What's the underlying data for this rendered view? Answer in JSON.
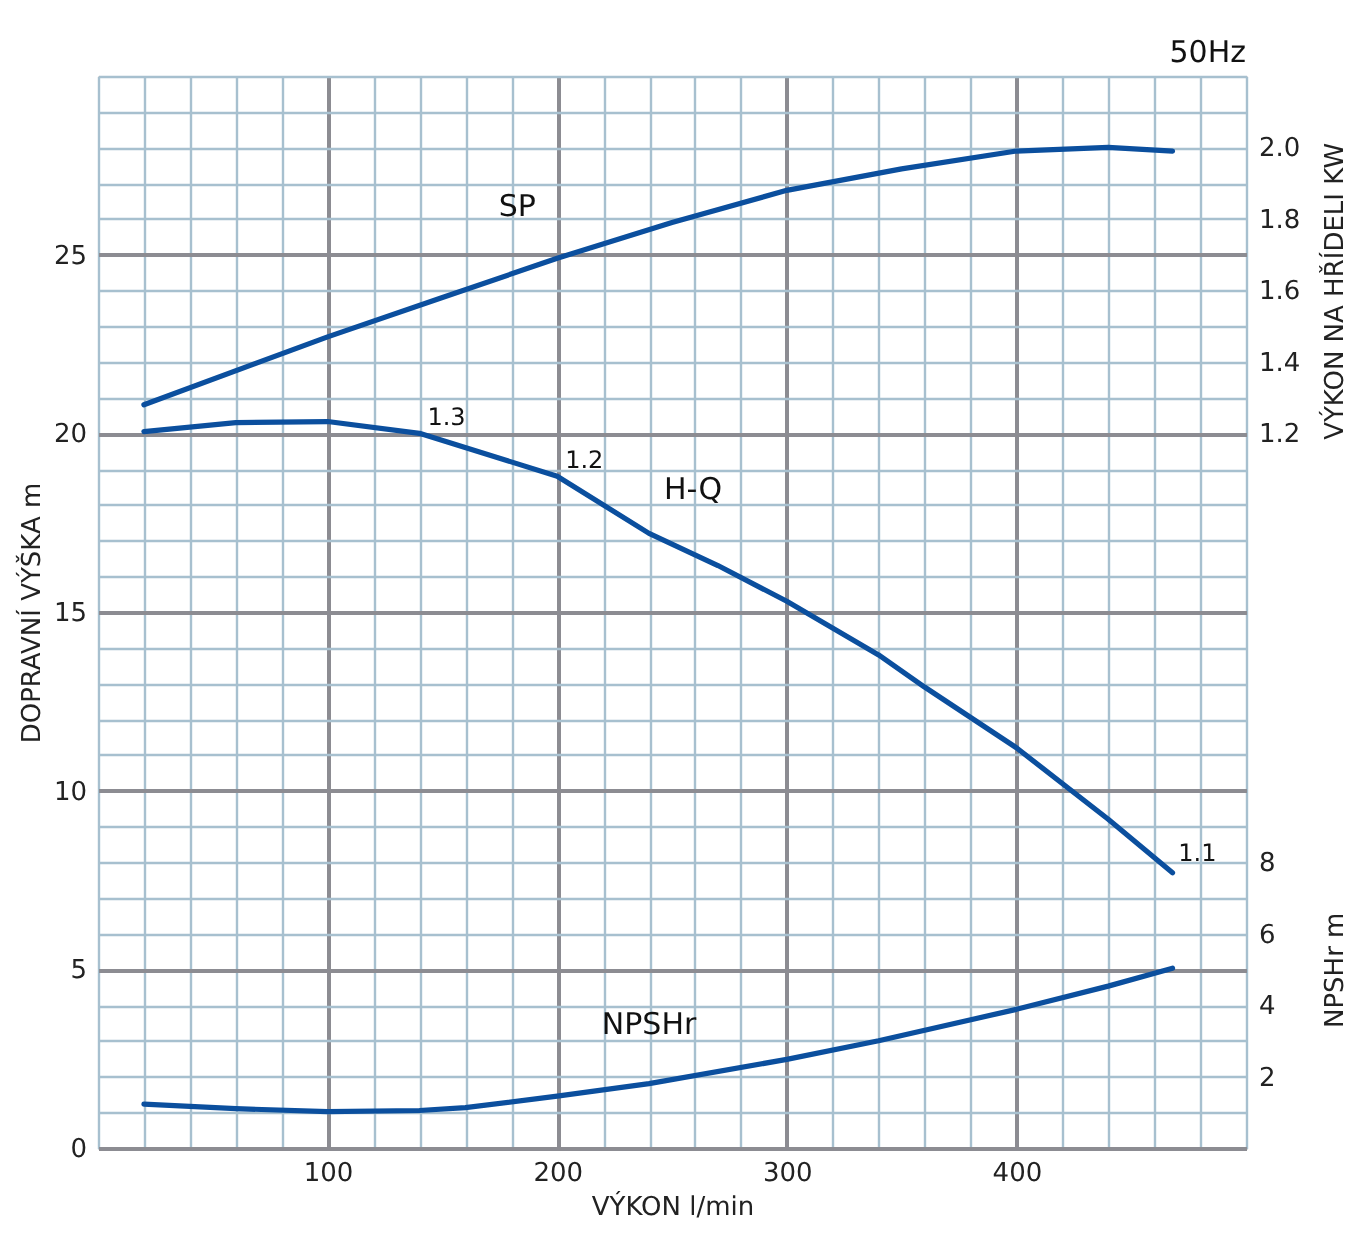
{
  "chart_data": {
    "type": "line",
    "xlabel": "VÝKON l/min",
    "ylabel": "DOPRAVNÍ VÝŠKA m",
    "y2label": "VÝKON NA HŘÍDELI KW",
    "y3label": "NPSHr m",
    "xlim": [
      0,
      500
    ],
    "xticks": [
      {
        "value": 0,
        "label": null
      },
      {
        "value": 20,
        "label": null
      },
      {
        "value": 40,
        "label": null
      },
      {
        "value": 60,
        "label": null
      },
      {
        "value": 80,
        "label": null
      },
      100,
      {
        "value": 120,
        "label": null
      },
      {
        "value": 140,
        "label": null
      },
      {
        "value": 160,
        "label": null
      },
      {
        "value": 180,
        "label": null
      },
      200,
      {
        "value": 220,
        "label": null
      },
      {
        "value": 240,
        "label": null
      },
      {
        "value": 260,
        "label": null
      },
      {
        "value": 280,
        "label": null
      },
      300,
      {
        "value": 320,
        "label": null
      },
      {
        "value": 340,
        "label": null
      },
      {
        "value": 360,
        "label": null
      },
      {
        "value": 380,
        "label": null
      },
      400,
      {
        "value": 420,
        "label": null
      },
      {
        "value": 440,
        "label": null
      },
      {
        "value": 460,
        "label": null
      },
      {
        "value": 480,
        "label": null
      },
      {
        "value": 500,
        "label": null
      }
    ],
    "ylim": [
      0,
      30
    ],
    "yticks": [
      0,
      {
        "value": 1,
        "label": null
      },
      {
        "value": 2,
        "label": null
      },
      {
        "value": 3,
        "label": null
      },
      {
        "value": 4,
        "label": null
      },
      5,
      {
        "value": 6,
        "label": null
      },
      {
        "value": 7,
        "label": null
      },
      {
        "value": 8,
        "label": null
      },
      {
        "value": 9,
        "label": null
      },
      10,
      {
        "value": 11,
        "label": null
      },
      {
        "value": 12,
        "label": null
      },
      {
        "value": 13,
        "label": null
      },
      {
        "value": 14,
        "label": null
      },
      15,
      {
        "value": 16,
        "label": null
      },
      {
        "value": 17,
        "label": null
      },
      {
        "value": 18,
        "label": null
      },
      {
        "value": 19,
        "label": null
      },
      20,
      {
        "value": 21,
        "label": null
      },
      {
        "value": 22,
        "label": null
      },
      {
        "value": 23,
        "label": null
      },
      {
        "value": 24,
        "label": null
      },
      25,
      {
        "value": 26,
        "label": null
      },
      {
        "value": 27,
        "label": null
      },
      {
        "value": 28,
        "label": null
      },
      {
        "value": 29,
        "label": null
      },
      {
        "value": 30,
        "label": null
      }
    ],
    "y2lim": [
      -0.8,
      2.2
    ],
    "y2ticks": [
      1.2,
      1.4,
      1.6,
      1.8,
      {
        "value": 2,
        "label": "2.0"
      }
    ],
    "y3lim": [
      0,
      30
    ],
    "y3ticks": [
      2,
      4,
      6,
      8
    ],
    "grid": true,
    "legend": false,
    "line_style": "solid",
    "marker": "none",
    "series": [
      {
        "name": "H-Q",
        "color": "#0b4f9e",
        "x": [
          20,
          60,
          100,
          140,
          200,
          240,
          270,
          300,
          340,
          360,
          400,
          440,
          468
        ],
        "values": [
          20.05,
          20.3,
          20.33,
          20.0,
          18.8,
          17.2,
          16.3,
          15.3,
          13.8,
          12.9,
          11.2,
          9.2,
          7.7
        ]
      },
      {
        "name": "SP",
        "axis": "y2",
        "color": "#0b4f9e",
        "x": [
          20,
          100,
          150,
          200,
          250,
          300,
          350,
          400,
          440,
          468
        ],
        "values": [
          1.28,
          1.47,
          1.58,
          1.69,
          1.79,
          1.88,
          1.94,
          1.99,
          2.0,
          1.99
        ]
      },
      {
        "name": "NPSHr",
        "axis": "y3",
        "color": "#0b4f9e",
        "x": [
          20,
          60,
          100,
          140,
          160,
          200,
          240,
          300,
          340,
          400,
          440,
          468
        ],
        "values": [
          1.23,
          1.1,
          1.02,
          1.05,
          1.13,
          1.45,
          1.8,
          2.48,
          3.0,
          3.88,
          4.53,
          5.03
        ]
      }
    ],
    "annotations": [
      "50Hz",
      {
        "text": "1.3",
        "x": 140,
        "y": 20.0
      },
      {
        "text": "1.2",
        "x": 200,
        "y": 18.8
      },
      {
        "text": "1.1",
        "x": 467,
        "y": 7.8
      }
    ]
  }
}
